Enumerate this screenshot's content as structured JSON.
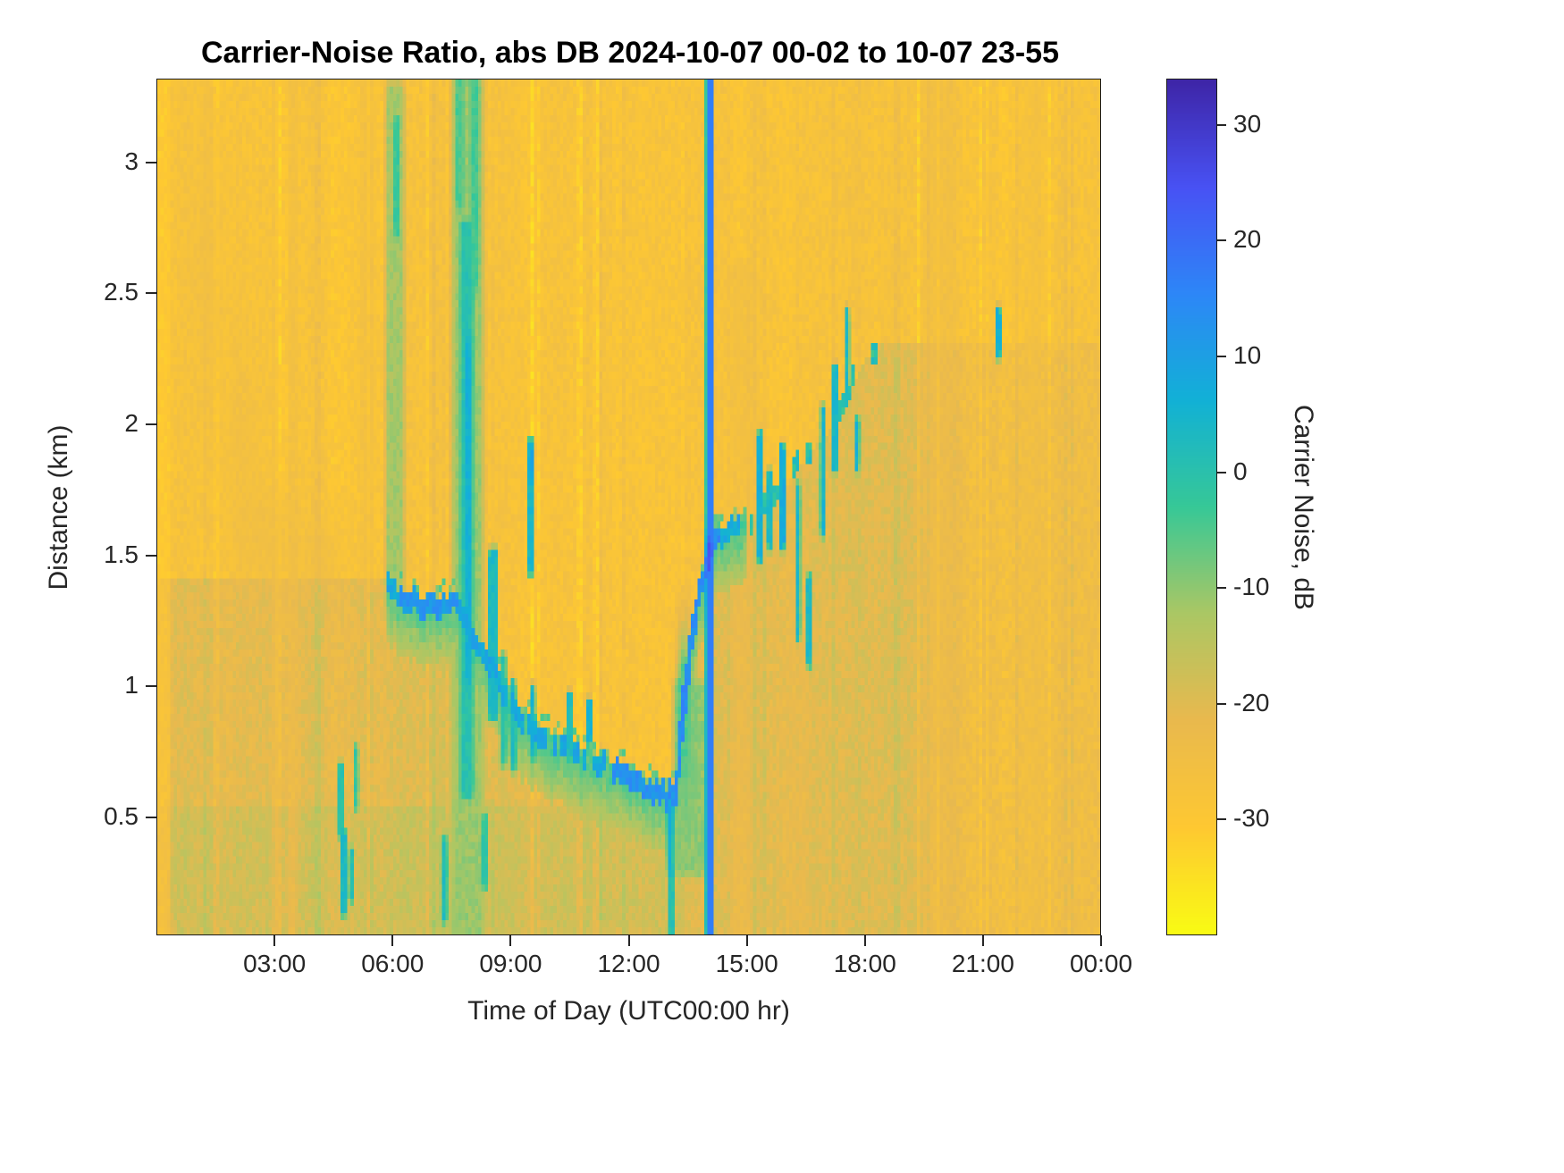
{
  "figure": {
    "background_color": "#ffffff",
    "axes_color": "#262626",
    "title_color": "#000000"
  },
  "chart_data": {
    "type": "heatmap",
    "title": "Carrier-Noise Ratio, abs DB 2024-10-07 00-02 to 10-07 23-55",
    "xlabel": "Time of Day (UTC00:00 hr)",
    "ylabel": "Distance (km)",
    "x_range_hours": [
      0,
      24
    ],
    "y_range_km": [
      0.05,
      3.32
    ],
    "x_ticks": [
      {
        "hour": 3,
        "label": "03:00"
      },
      {
        "hour": 6,
        "label": "06:00"
      },
      {
        "hour": 9,
        "label": "09:00"
      },
      {
        "hour": 12,
        "label": "12:00"
      },
      {
        "hour": 15,
        "label": "15:00"
      },
      {
        "hour": 18,
        "label": "18:00"
      },
      {
        "hour": 21,
        "label": "21:00"
      },
      {
        "hour": 24,
        "label": "00:00"
      }
    ],
    "y_ticks": [
      {
        "km": 0.5,
        "label": "0.5"
      },
      {
        "km": 1,
        "label": "1"
      },
      {
        "km": 1.5,
        "label": "1.5"
      },
      {
        "km": 2,
        "label": "2"
      },
      {
        "km": 2.5,
        "label": "2.5"
      },
      {
        "km": 3,
        "label": "3"
      }
    ],
    "colorbar": {
      "label": "Carrier Noise, dB",
      "range": [
        -40,
        34
      ],
      "ticks": [
        {
          "v": 30,
          "label": "30"
        },
        {
          "v": 20,
          "label": "20"
        },
        {
          "v": 10,
          "label": "10"
        },
        {
          "v": 0,
          "label": "0"
        },
        {
          "v": -10,
          "label": "-10"
        },
        {
          "v": -20,
          "label": "-20"
        },
        {
          "v": -30,
          "label": "-30"
        }
      ],
      "colormap": "parula-flipped",
      "stops": [
        {
          "t": 0.0,
          "color": "#f9fb14"
        },
        {
          "t": 0.125,
          "color": "#fec832"
        },
        {
          "t": 0.25,
          "color": "#e9b94e"
        },
        {
          "t": 0.375,
          "color": "#abc764"
        },
        {
          "t": 0.5,
          "color": "#37c897"
        },
        {
          "t": 0.625,
          "color": "#12b1d6"
        },
        {
          "t": 0.75,
          "color": "#2d87f7"
        },
        {
          "t": 0.875,
          "color": "#4852f4"
        },
        {
          "t": 1.0,
          "color": "#3e26a8"
        }
      ]
    },
    "heatmap_model": {
      "seed": 1337,
      "grid": {
        "cols": 288,
        "rows": 120
      },
      "base_upper": -27.5,
      "base_lower": -20.5,
      "cell_noise": 2.4,
      "column_noise": 1.4,
      "green_band": {
        "max_km": 0.55,
        "max_hour": 13.4,
        "value": -17.5
      },
      "evening_fade": {
        "from_hour": 19.2,
        "span": 1.6,
        "lower_value": -24.5
      },
      "boundary": {
        "points": [
          [
            0,
            1.42
          ],
          [
            5.8,
            1.42
          ],
          [
            6.2,
            1.33
          ],
          [
            7.0,
            1.3
          ],
          [
            7.6,
            1.33
          ],
          [
            8.0,
            1.18
          ],
          [
            8.4,
            1.08
          ],
          [
            8.8,
            0.98
          ],
          [
            9.2,
            0.88
          ],
          [
            9.6,
            0.82
          ],
          [
            10.0,
            0.78
          ],
          [
            10.6,
            0.74
          ],
          [
            11.2,
            0.7
          ],
          [
            11.8,
            0.66
          ],
          [
            12.4,
            0.62
          ],
          [
            13.0,
            0.57
          ],
          [
            13.2,
            0.62
          ],
          [
            13.35,
            0.85
          ],
          [
            13.5,
            1.05
          ],
          [
            13.65,
            1.22
          ],
          [
            13.8,
            1.35
          ],
          [
            14.0,
            1.47
          ],
          [
            14.2,
            1.55
          ],
          [
            14.6,
            1.6
          ],
          [
            15.0,
            1.63
          ],
          [
            15.5,
            1.69
          ],
          [
            16.0,
            1.77
          ],
          [
            16.5,
            1.86
          ],
          [
            17.0,
            1.96
          ],
          [
            17.5,
            2.08
          ],
          [
            18.0,
            2.25
          ],
          [
            18.5,
            2.32
          ],
          [
            24,
            2.32
          ]
        ],
        "line_from": 5.85,
        "line_to": 15.0,
        "thickness_km": 0.04,
        "core_value": 8,
        "bright_segments": [
          [
            6.15,
            7.7,
            12
          ],
          [
            11.6,
            13.3,
            13
          ],
          [
            13.3,
            14.35,
            14
          ]
        ],
        "gap_segments": [
          [
            8.3,
            11.6,
            0.72
          ],
          [
            14.4,
            15.0,
            0.6
          ]
        ],
        "halo_depth_km": 0.22,
        "halo_edge_value": -3,
        "halo_far_value": -16,
        "faint_from": 15.0,
        "faint_to": 18.5,
        "faint_value": 0,
        "faint_prob": 0.35
      },
      "stains": [
        {
          "type": "vband",
          "t": 0.15,
          "w": 0.25,
          "d0": 0.05,
          "d1": 3.32,
          "v": -33,
          "a": 0.55
        },
        {
          "type": "blob",
          "t": 1.3,
          "d": 2.6,
          "st": 0.55,
          "sd": 0.7,
          "v": -24,
          "a": 0.5
        },
        {
          "type": "blob",
          "t": 2.2,
          "d": 1.9,
          "st": 0.5,
          "sd": 0.5,
          "v": -24,
          "a": 0.5
        },
        {
          "type": "blob",
          "t": 2.9,
          "d": 1.55,
          "st": 0.9,
          "sd": 0.18,
          "v": -23,
          "a": 0.55
        },
        {
          "type": "blob",
          "t": 4.3,
          "d": 1.5,
          "st": 0.6,
          "sd": 0.15,
          "v": -23,
          "a": 0.5
        },
        {
          "type": "vband",
          "t": 3.45,
          "w": 0.16,
          "d0": 0.05,
          "d1": 3.32,
          "v": -23.5,
          "a": 0.55
        },
        {
          "type": "vband",
          "t": 3.0,
          "w": 0.1,
          "d0": 0.05,
          "d1": 3.32,
          "v": -24.5,
          "a": 0.4
        },
        {
          "type": "vband",
          "t": 5.35,
          "w": 0.25,
          "d0": 1.4,
          "d1": 3.32,
          "v": -25,
          "a": 0.45
        },
        {
          "type": "vband",
          "t": 14.9,
          "w": 0.35,
          "d0": 0.05,
          "d1": 2.6,
          "v": -23,
          "a": 0.5
        },
        {
          "type": "vband",
          "t": 16.35,
          "w": 0.3,
          "d0": 0.05,
          "d1": 1.6,
          "v": -23.5,
          "a": 0.45
        },
        {
          "type": "vband",
          "t": 19.9,
          "w": 0.5,
          "d0": 0.05,
          "d1": 3.32,
          "v": -24,
          "a": 0.5
        },
        {
          "type": "vband",
          "t": 22.3,
          "w": 0.3,
          "d0": 0.05,
          "d1": 3.32,
          "v": -25,
          "a": 0.4
        }
      ],
      "features": [
        {
          "type": "vband",
          "t": 6.05,
          "w": 0.3,
          "d0": 1.3,
          "d1": 3.28,
          "v": -12
        },
        {
          "type": "vband",
          "t": 6.1,
          "w": 0.1,
          "d0": 2.75,
          "d1": 3.15,
          "v": -3
        },
        {
          "type": "vband",
          "t": 7.9,
          "w": 0.5,
          "d0": 0.05,
          "d1": 3.32,
          "v": -11
        },
        {
          "type": "vband",
          "t": 7.88,
          "w": 0.2,
          "d0": 0.6,
          "d1": 2.75,
          "v": 0
        },
        {
          "type": "vband",
          "t": 7.92,
          "w": 0.12,
          "d0": 1.05,
          "d1": 2.3,
          "v": 6
        },
        {
          "type": "vband",
          "t": 8.08,
          "w": 0.14,
          "d0": 2.55,
          "d1": 3.32,
          "v": -4
        },
        {
          "type": "vband",
          "t": 7.7,
          "w": 0.12,
          "d0": 2.85,
          "d1": 3.32,
          "v": -5
        },
        {
          "type": "vband",
          "t": 8.55,
          "w": 0.14,
          "d0": 0.9,
          "d1": 1.5,
          "v": 3
        },
        {
          "type": "vband",
          "t": 8.8,
          "w": 0.1,
          "d0": 0.72,
          "d1": 1.1,
          "v": 0
        },
        {
          "type": "vband",
          "t": 9.05,
          "w": 0.1,
          "d0": 0.7,
          "d1": 1.0,
          "v": 2
        },
        {
          "type": "vband",
          "t": 9.5,
          "w": 0.08,
          "d0": 1.45,
          "d1": 1.92,
          "v": 4
        },
        {
          "type": "blob",
          "t": 9.52,
          "d": 1.85,
          "st": 0.06,
          "sd": 0.05,
          "v": 10
        },
        {
          "type": "vband",
          "t": 9.55,
          "w": 0.07,
          "d0": 0.75,
          "d1": 0.98,
          "v": 5
        },
        {
          "type": "vband",
          "t": 4.65,
          "w": 0.1,
          "d0": 0.45,
          "d1": 0.68,
          "v": 0
        },
        {
          "type": "vband",
          "t": 4.75,
          "w": 0.1,
          "d0": 0.15,
          "d1": 0.42,
          "v": 3
        },
        {
          "type": "vband",
          "t": 4.95,
          "w": 0.08,
          "d0": 0.2,
          "d1": 0.35,
          "v": 1
        },
        {
          "type": "vband",
          "t": 5.05,
          "w": 0.06,
          "d0": 0.55,
          "d1": 0.75,
          "v": -2
        },
        {
          "type": "vband",
          "t": 7.3,
          "w": 0.1,
          "d0": 0.12,
          "d1": 0.4,
          "v": 2
        },
        {
          "type": "vband",
          "t": 8.35,
          "w": 0.08,
          "d0": 0.25,
          "d1": 0.48,
          "v": -2
        },
        {
          "type": "vband",
          "t": 10.5,
          "w": 0.06,
          "d0": 0.75,
          "d1": 0.95,
          "v": 2
        },
        {
          "type": "vband",
          "t": 11.0,
          "w": 0.05,
          "d0": 0.8,
          "d1": 0.92,
          "v": 5
        },
        {
          "type": "vband",
          "t": 13.05,
          "w": 0.1,
          "d0": 0.3,
          "d1": 0.58,
          "v": 7
        },
        {
          "type": "vband",
          "t": 13.1,
          "w": 0.07,
          "d0": 0.05,
          "d1": 0.3,
          "v": 0
        },
        {
          "type": "vband",
          "t": 13.55,
          "w": 0.5,
          "d0": 0.3,
          "d1": 1.0,
          "v": -10
        },
        {
          "type": "blob",
          "t": 13.4,
          "d": 0.9,
          "st": 0.18,
          "sd": 0.3,
          "v": -5
        },
        {
          "type": "vband",
          "t": 15.35,
          "w": 0.08,
          "d0": 1.5,
          "d1": 1.95,
          "v": 6
        },
        {
          "type": "vband",
          "t": 15.6,
          "w": 0.06,
          "d0": 1.55,
          "d1": 1.8,
          "v": 3
        },
        {
          "type": "vband",
          "t": 15.9,
          "w": 0.07,
          "d0": 1.55,
          "d1": 1.9,
          "v": 7
        },
        {
          "type": "vband",
          "t": 16.3,
          "w": 0.06,
          "d0": 1.2,
          "d1": 1.75,
          "v": 4
        },
        {
          "type": "vband",
          "t": 16.6,
          "w": 0.06,
          "d0": 1.1,
          "d1": 1.4,
          "v": 3
        },
        {
          "type": "vband",
          "t": 16.95,
          "w": 0.07,
          "d0": 1.6,
          "d1": 2.05,
          "v": 5
        },
        {
          "type": "vband",
          "t": 17.25,
          "w": 0.06,
          "d0": 1.85,
          "d1": 2.2,
          "v": 4
        },
        {
          "type": "vband",
          "t": 17.55,
          "w": 0.06,
          "d0": 2.15,
          "d1": 2.42,
          "v": 3
        },
        {
          "type": "vband",
          "t": 17.8,
          "w": 0.05,
          "d0": 1.85,
          "d1": 2.0,
          "v": 6
        },
        {
          "type": "vband",
          "t": 21.4,
          "w": 0.06,
          "d0": 2.28,
          "d1": 2.42,
          "v": 6
        },
        {
          "type": "blob",
          "t": 14.05,
          "d": 1.5,
          "st": 0.09,
          "sd": 0.09,
          "v": 24
        },
        {
          "type": "vband",
          "t": 14.07,
          "w": 0.14,
          "d0": 0.05,
          "d1": 3.32,
          "v": 17,
          "solid": true
        }
      ]
    }
  }
}
